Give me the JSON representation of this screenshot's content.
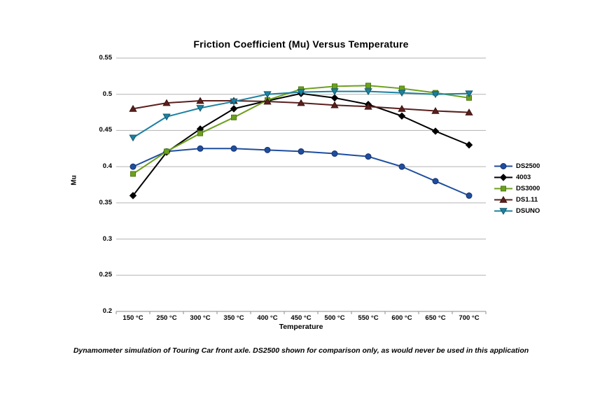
{
  "caption": "Dynamometer simulation of Touring Car front axle. DS2500 shown for comparison only, as would never be used in this application",
  "chart_data": {
    "type": "line",
    "title": "Friction Coefficient (Mu) Versus Temperature",
    "xlabel": "Temperature",
    "ylabel": "Mu",
    "categories": [
      "150 °C",
      "250 °C",
      "300 °C",
      "350 °C",
      "400 °C",
      "450 °C",
      "500 °C",
      "550 °C",
      "600 °C",
      "650 °C",
      "700 °C"
    ],
    "y_tick_labels": [
      "0.55",
      "0.5",
      "0.45",
      "0.4",
      "0.35",
      "0.3",
      "0.25",
      "0.2"
    ],
    "ylim": [
      0.2,
      0.55
    ],
    "grid": true,
    "legend_position": "right",
    "style": {
      "grid_color": "#B3B3B3",
      "axis_color": "#8C8C8C",
      "background": "#FFFFFF"
    },
    "series": [
      {
        "name": "DS2500",
        "color": "#1F4E9E",
        "edge": "#16316B",
        "marker": "circle",
        "values": [
          0.4,
          0.421,
          0.425,
          0.425,
          0.423,
          0.421,
          0.418,
          0.414,
          0.4,
          0.38,
          0.36
        ]
      },
      {
        "name": "4003",
        "color": "#000000",
        "edge": "#000000",
        "marker": "diamond",
        "values": [
          0.36,
          0.42,
          0.452,
          0.48,
          0.491,
          0.501,
          0.495,
          0.486,
          0.47,
          0.449,
          0.43
        ]
      },
      {
        "name": "DS3000",
        "color": "#6DA01E",
        "edge": "#4E7A12",
        "marker": "square",
        "values": [
          0.39,
          0.421,
          0.446,
          0.468,
          0.492,
          0.507,
          0.511,
          0.512,
          0.508,
          0.502,
          0.495
        ]
      },
      {
        "name": "DS1.11",
        "color": "#5A201D",
        "edge": "#3A120F",
        "marker": "triangle-up",
        "values": [
          0.48,
          0.488,
          0.491,
          0.491,
          0.49,
          0.488,
          0.485,
          0.483,
          0.48,
          0.477,
          0.475
        ]
      },
      {
        "name": "DSUNO",
        "color": "#1C81A0",
        "edge": "#14596E",
        "marker": "triangle-down",
        "values": [
          0.44,
          0.469,
          0.481,
          0.49,
          0.5,
          0.503,
          0.504,
          0.504,
          0.502,
          0.5,
          0.501
        ]
      }
    ]
  }
}
